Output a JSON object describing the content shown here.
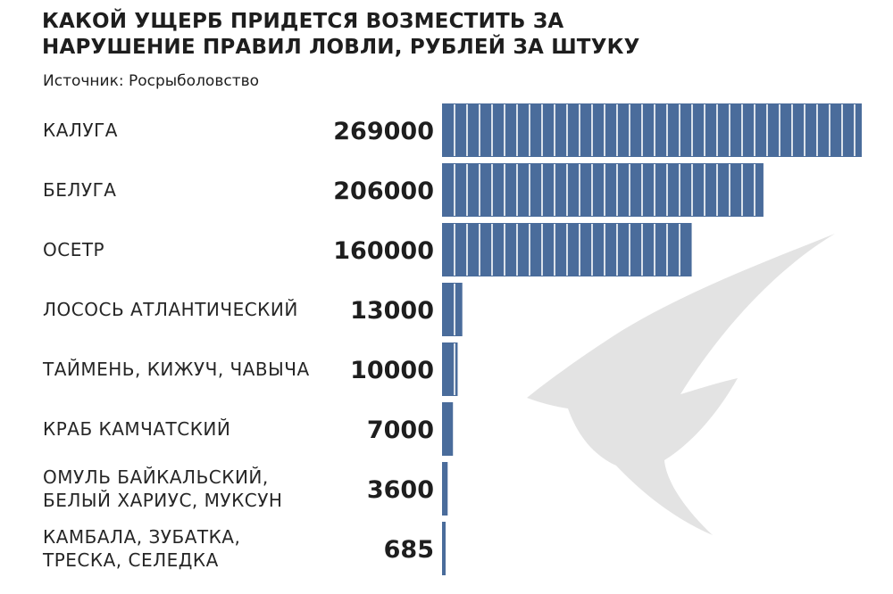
{
  "title": "КАКОЙ УЩЕРБ ПРИДЕТСЯ ВОЗМЕСТИТЬ ЗА НАРУШЕНИЕ ПРАВИЛ ЛОВЛИ, РУБЛЕЙ ЗА ШТУКУ",
  "source": "Источник: Росрыболовство",
  "colors": {
    "bar": "#4a6c9b",
    "fish": "#e3e3e3"
  },
  "chart_data": {
    "type": "bar",
    "orientation": "horizontal",
    "title": "КАКОЙ УЩЕРБ ПРИДЕТСЯ ВОЗМЕСТИТЬ ЗА НАРУШЕНИЕ ПРАВИЛ ЛОВЛИ, РУБЛЕЙ ЗА ШТУКУ",
    "categories": [
      [
        "КАЛУГА"
      ],
      [
        "БЕЛУГА"
      ],
      [
        "ОСЕТР"
      ],
      [
        "ЛОСОСЬ АТЛАНТИЧЕСКИЙ"
      ],
      [
        "ТАЙМЕНЬ, КИЖУЧ, ЧАВЫЧА"
      ],
      [
        "КРАБ КАМЧАТСКИЙ"
      ],
      [
        "ОМУЛЬ БАЙКАЛЬСКИЙ,",
        "БЕЛЫЙ ХАРИУС, МУКСУН"
      ],
      [
        "КАМБАЛА, ЗУБАТКА,",
        "ТРЕСКА, СЕЛЕДКА"
      ]
    ],
    "values": [
      269000,
      206000,
      160000,
      13000,
      10000,
      7000,
      3600,
      685
    ],
    "value_labels": [
      "269000",
      "206000",
      "160000",
      "13000",
      "10000",
      "7000",
      "3600",
      "685"
    ],
    "xlim": [
      0,
      269000
    ],
    "grid": false,
    "legend": "none"
  }
}
